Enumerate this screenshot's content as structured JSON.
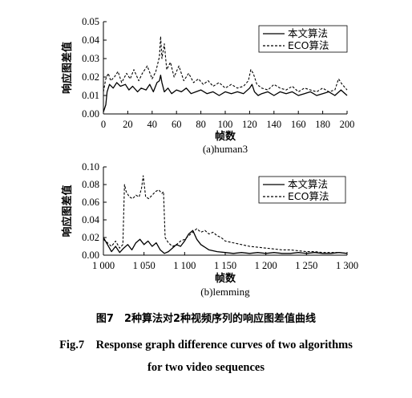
{
  "chart_data": [
    {
      "type": "line",
      "subtitle": "(a)human3",
      "xlabel": "帧数",
      "ylabel": "响应图差值",
      "xlim": [
        0,
        200
      ],
      "ylim": [
        0,
        0.05
      ],
      "xticks": [
        "0",
        "20",
        "40",
        "60",
        "80",
        "100",
        "120",
        "140",
        "160",
        "180",
        "200"
      ],
      "yticks": [
        "0.00",
        "0.01",
        "0.02",
        "0.03",
        "0.04",
        "0.05"
      ],
      "legend_position": "top-right",
      "series": [
        {
          "name": "本文算法",
          "style": "solid",
          "x": [
            0,
            2,
            3,
            5,
            8,
            11,
            14,
            18,
            21,
            24,
            28,
            31,
            35,
            38,
            41,
            44,
            46,
            47,
            48,
            50,
            53,
            56,
            60,
            64,
            68,
            72,
            76,
            80,
            85,
            90,
            95,
            100,
            105,
            110,
            115,
            120,
            122,
            124,
            127,
            130,
            135,
            140,
            145,
            150,
            155,
            160,
            165,
            170,
            175,
            180,
            185,
            190,
            195,
            200
          ],
          "y": [
            0.001,
            0.005,
            0.012,
            0.016,
            0.014,
            0.017,
            0.015,
            0.016,
            0.013,
            0.015,
            0.012,
            0.014,
            0.013,
            0.016,
            0.012,
            0.017,
            0.018,
            0.021,
            0.017,
            0.012,
            0.014,
            0.011,
            0.013,
            0.012,
            0.014,
            0.011,
            0.012,
            0.013,
            0.011,
            0.012,
            0.01,
            0.012,
            0.011,
            0.012,
            0.011,
            0.014,
            0.016,
            0.012,
            0.01,
            0.011,
            0.012,
            0.01,
            0.012,
            0.011,
            0.012,
            0.01,
            0.011,
            0.012,
            0.01,
            0.011,
            0.012,
            0.01,
            0.013,
            0.01
          ]
        },
        {
          "name": "ECO算法",
          "style": "dashed",
          "x": [
            0,
            2,
            4,
            6,
            9,
            12,
            15,
            19,
            22,
            25,
            29,
            32,
            36,
            40,
            43,
            46,
            47,
            48,
            50,
            52,
            55,
            58,
            62,
            66,
            70,
            74,
            78,
            82,
            86,
            90,
            95,
            100,
            105,
            110,
            115,
            119,
            121,
            123,
            126,
            130,
            135,
            140,
            145,
            150,
            155,
            160,
            165,
            170,
            175,
            180,
            185,
            190,
            193,
            196,
            200
          ],
          "y": [
            0.012,
            0.019,
            0.022,
            0.018,
            0.02,
            0.023,
            0.017,
            0.022,
            0.019,
            0.024,
            0.018,
            0.022,
            0.026,
            0.019,
            0.023,
            0.031,
            0.042,
            0.03,
            0.038,
            0.024,
            0.028,
            0.02,
            0.026,
            0.018,
            0.022,
            0.017,
            0.019,
            0.016,
            0.018,
            0.015,
            0.017,
            0.014,
            0.016,
            0.014,
            0.015,
            0.018,
            0.024,
            0.022,
            0.016,
            0.014,
            0.013,
            0.016,
            0.014,
            0.013,
            0.015,
            0.012,
            0.014,
            0.013,
            0.012,
            0.014,
            0.012,
            0.013,
            0.019,
            0.016,
            0.013
          ]
        }
      ]
    },
    {
      "type": "line",
      "subtitle": "(b)lemming",
      "xlabel": "帧数",
      "ylabel": "响应图差值",
      "xlim": [
        1000,
        1300
      ],
      "ylim": [
        0,
        0.1
      ],
      "xticks": [
        "1 000",
        "1 050",
        "1 100",
        "1 150",
        "1 200",
        "1 250",
        "1 300"
      ],
      "yticks": [
        "0.00",
        "0.02",
        "0.04",
        "0.06",
        "0.08",
        "0.10"
      ],
      "legend_position": "top-right",
      "series": [
        {
          "name": "本文算法",
          "style": "solid",
          "x": [
            1000,
            1005,
            1010,
            1015,
            1020,
            1025,
            1030,
            1035,
            1040,
            1045,
            1050,
            1055,
            1060,
            1065,
            1070,
            1075,
            1080,
            1085,
            1090,
            1095,
            1100,
            1105,
            1110,
            1115,
            1120,
            1130,
            1140,
            1150,
            1160,
            1170,
            1180,
            1190,
            1200,
            1210,
            1220,
            1230,
            1240,
            1250,
            1260,
            1270,
            1280,
            1290,
            1300
          ],
          "y": [
            0.02,
            0.012,
            0.004,
            0.01,
            0.003,
            0.008,
            0.012,
            0.006,
            0.014,
            0.018,
            0.012,
            0.016,
            0.01,
            0.014,
            0.006,
            0.002,
            0.004,
            0.008,
            0.012,
            0.01,
            0.016,
            0.024,
            0.028,
            0.018,
            0.012,
            0.006,
            0.004,
            0.003,
            0.002,
            0.003,
            0.002,
            0.003,
            0.002,
            0.003,
            0.002,
            0.002,
            0.003,
            0.002,
            0.003,
            0.002,
            0.002,
            0.003,
            0.002
          ]
        },
        {
          "name": "ECO算法",
          "style": "dashed",
          "x": [
            1000,
            1005,
            1010,
            1015,
            1020,
            1024,
            1026,
            1028,
            1032,
            1036,
            1040,
            1044,
            1047,
            1049,
            1052,
            1056,
            1060,
            1064,
            1068,
            1072,
            1074,
            1076,
            1080,
            1085,
            1090,
            1095,
            1100,
            1105,
            1110,
            1115,
            1120,
            1125,
            1130,
            1135,
            1140,
            1145,
            1150,
            1160,
            1170,
            1180,
            1190,
            1200,
            1210,
            1220,
            1230,
            1240,
            1250,
            1260,
            1270,
            1280,
            1290,
            1300
          ],
          "y": [
            0.018,
            0.014,
            0.01,
            0.016,
            0.008,
            0.012,
            0.08,
            0.072,
            0.066,
            0.064,
            0.068,
            0.066,
            0.076,
            0.09,
            0.066,
            0.064,
            0.068,
            0.072,
            0.074,
            0.07,
            0.072,
            0.02,
            0.014,
            0.01,
            0.012,
            0.016,
            0.018,
            0.022,
            0.026,
            0.03,
            0.026,
            0.028,
            0.024,
            0.026,
            0.022,
            0.02,
            0.016,
            0.014,
            0.012,
            0.01,
            0.009,
            0.008,
            0.007,
            0.006,
            0.006,
            0.005,
            0.004,
            0.004,
            0.003,
            0.003,
            0.003,
            0.002
          ]
        }
      ]
    }
  ],
  "captions": {
    "zh": "图7　2种算法对2种视频序列的响应图差值曲线",
    "en_line1": "Fig.7　Response graph difference curves of two algorithms",
    "en_line2": "for two video sequences"
  }
}
